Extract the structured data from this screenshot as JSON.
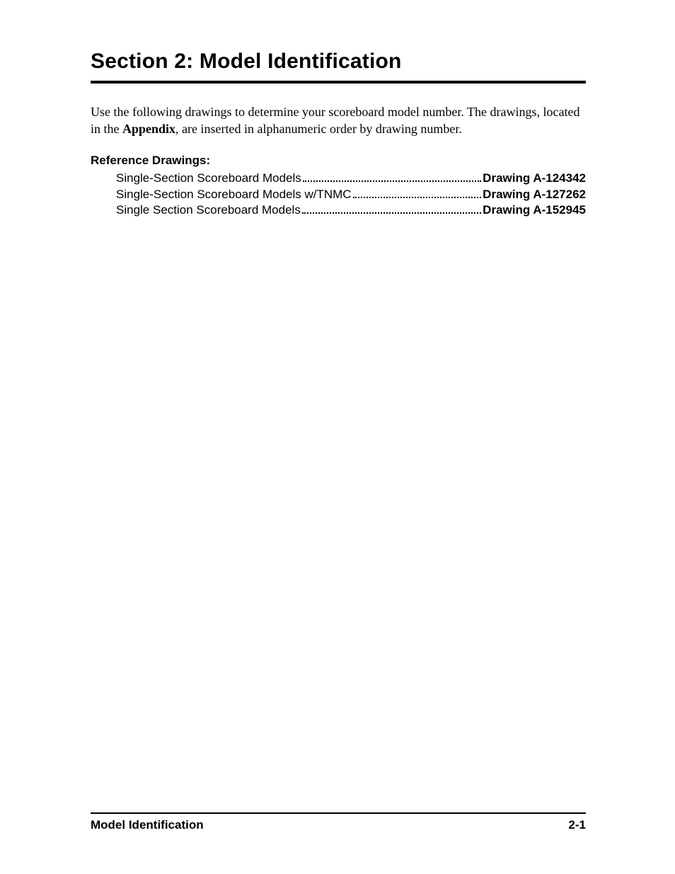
{
  "section": {
    "title": "Section 2:  Model Identification",
    "intro_part1": "Use the following drawings to determine your scoreboard model number. The drawings, located in the ",
    "intro_bold": "Appendix",
    "intro_part2": ", are inserted in alphanumeric order by drawing number."
  },
  "reference": {
    "heading": "Reference Drawings:",
    "items": [
      {
        "label": "Single-Section Scoreboard Models",
        "drawing": "Drawing A-124342"
      },
      {
        "label": "Single-Section Scoreboard Models w/TNMC",
        "drawing": "Drawing A-127262"
      },
      {
        "label": "Single Section Scoreboard Models",
        "drawing": "Drawing A-152945"
      }
    ]
  },
  "footer": {
    "left": "Model Identification",
    "right": "2-1"
  }
}
